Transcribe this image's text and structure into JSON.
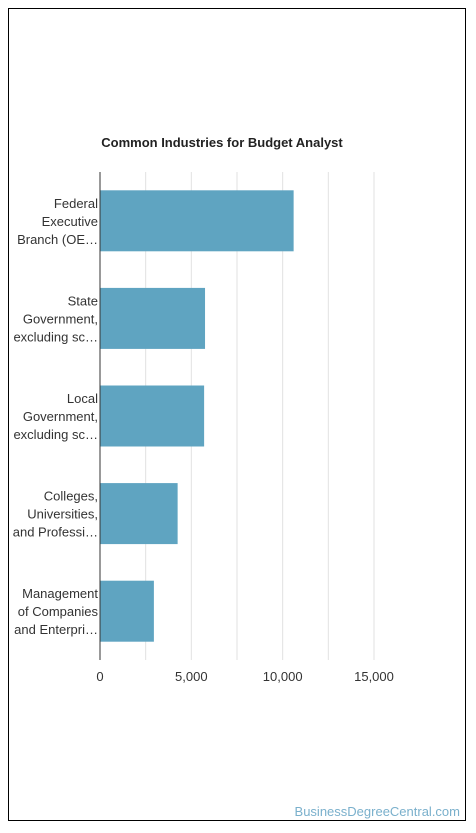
{
  "chart_data": {
    "type": "bar",
    "orientation": "horizontal",
    "title": "Common Industries for Budget Analyst",
    "categories": [
      [
        "Federal",
        "Executive",
        "Branch (OE…"
      ],
      [
        "State",
        "Government,",
        "excluding sc…"
      ],
      [
        "Local",
        "Government,",
        "excluding sc…"
      ],
      [
        "Colleges,",
        "Universities,",
        "and Professi…"
      ],
      [
        "Management",
        "of Companies",
        "and Enterpri…"
      ]
    ],
    "values": [
      10600,
      5750,
      5700,
      4250,
      2950
    ],
    "xlim": [
      0,
      15000
    ],
    "xticks": [
      0,
      5000,
      10000,
      15000
    ],
    "xtick_labels": [
      "0",
      "5,000",
      "10,000",
      "15,000"
    ],
    "grid": true,
    "bar_color": "#5fa4c1"
  },
  "watermark": "BusinessDegreeCentral.com"
}
